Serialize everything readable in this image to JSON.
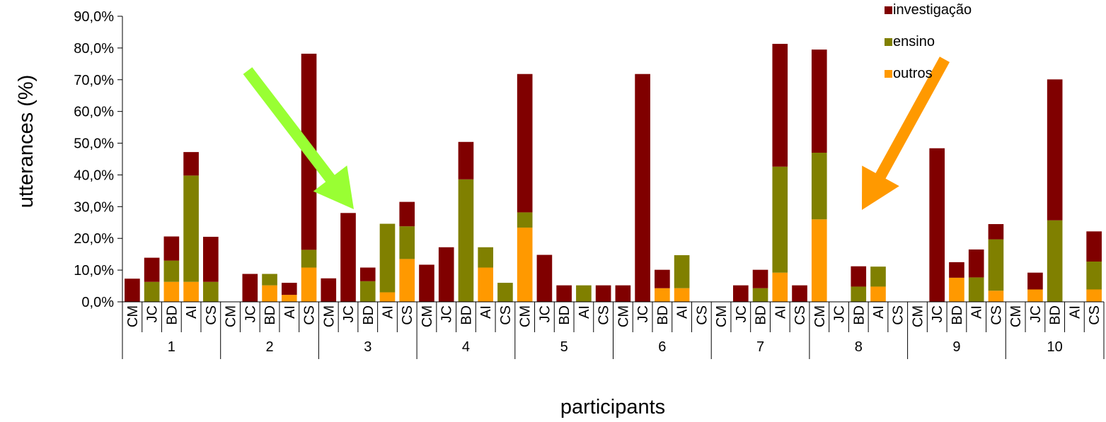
{
  "chart_data": {
    "type": "bar",
    "stacked": true,
    "xlabel": "participants",
    "ylabel": "utterances (%)",
    "ylim": [
      0,
      90
    ],
    "y_ticks": [
      "0,0%",
      "10,0%",
      "20,0%",
      "30,0%",
      "40,0%",
      "50,0%",
      "60,0%",
      "70,0%",
      "80,0%",
      "90,0%"
    ],
    "groups": [
      "1",
      "2",
      "3",
      "4",
      "5",
      "6",
      "7",
      "8",
      "9",
      "10"
    ],
    "subcategories": [
      "CM",
      "JC",
      "BD",
      "AI",
      "CS"
    ],
    "grid": false,
    "legend_position": "top-right",
    "series": [
      {
        "name": "outros",
        "color": "#FF9900",
        "values": [
          0,
          0,
          6.3,
          6.3,
          0,
          0,
          0,
          5.2,
          2.2,
          10.8,
          0,
          0,
          0,
          3,
          13.5,
          0,
          0,
          0,
          10.8,
          0,
          23.4,
          0,
          0,
          0,
          0,
          0,
          0,
          4.3,
          4.3,
          0,
          0,
          0,
          0,
          9.2,
          0,
          26,
          0,
          0,
          4.8,
          0,
          0,
          0,
          7.6,
          0,
          3.5,
          0,
          3.9,
          0,
          0,
          3.9
        ]
      },
      {
        "name": "ensino",
        "color": "#808000",
        "values": [
          0,
          6.3,
          6.7,
          33.5,
          6.3,
          0,
          0,
          3.6,
          0,
          5.6,
          0,
          0,
          6.5,
          21.6,
          10.3,
          0,
          0,
          38.6,
          6.4,
          6,
          4.8,
          0,
          0,
          5.2,
          0,
          0,
          0,
          0,
          10.4,
          0,
          0,
          0,
          4.3,
          33.4,
          0,
          21,
          0,
          4.8,
          6.3,
          0,
          0,
          0,
          0,
          7.7,
          16.2,
          0,
          0,
          25.7,
          0,
          8.8
        ]
      },
      {
        "name": "investigação",
        "color": "#800000",
        "values": [
          7.3,
          7.6,
          7.6,
          7.4,
          14.2,
          0,
          8.8,
          0,
          3.8,
          61.8,
          7.4,
          28,
          4.3,
          0,
          7.7,
          11.7,
          17.2,
          11.8,
          0,
          0,
          43.6,
          14.8,
          5.2,
          0,
          5.2,
          5.2,
          71.8,
          5.8,
          0,
          0,
          0,
          5.2,
          5.8,
          38.7,
          5.2,
          32.5,
          0,
          6.4,
          0,
          0,
          0,
          48.4,
          4.9,
          8.8,
          4.8,
          0,
          5.3,
          44.4,
          0,
          9.5
        ]
      }
    ]
  },
  "annotations": [
    {
      "name": "green-arrow",
      "color": "#99FF33"
    },
    {
      "name": "orange-arrow",
      "color": "#FF9900"
    }
  ]
}
